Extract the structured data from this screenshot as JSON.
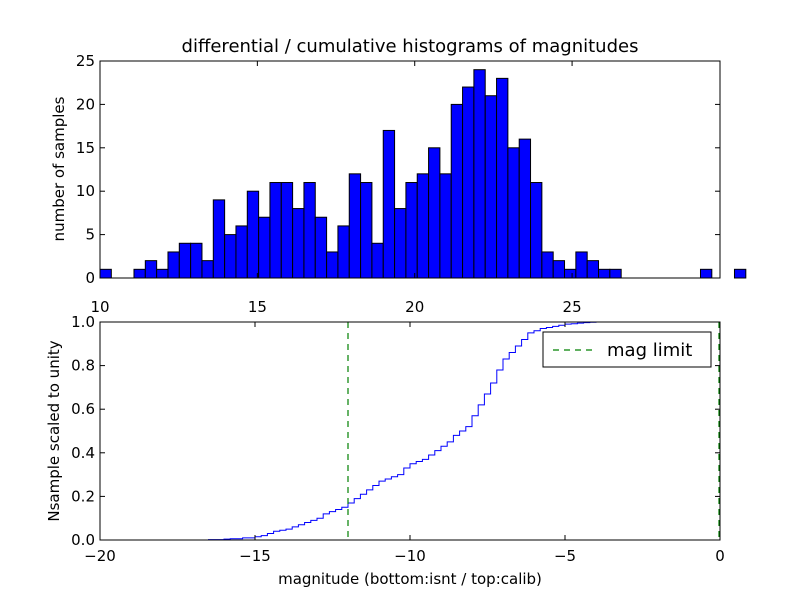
{
  "figure_title": "differential / cumulative histograms of magnitudes",
  "colors": {
    "bar_fill": "#0000ff",
    "cdf_line": "#0000ff",
    "limit_line": "#008000",
    "frame": "#000000"
  },
  "chart_data": [
    {
      "type": "bar",
      "title": "differential / cumulative histograms of magnitudes",
      "xlabel": "",
      "ylabel": "number of samples",
      "xlim": [
        10.0,
        29.7
      ],
      "ylim": [
        0,
        25
      ],
      "xticks": [
        10,
        15,
        20,
        25
      ],
      "xtick_labels": [
        "10",
        "15",
        "20",
        "25"
      ],
      "yticks": [
        0,
        5,
        10,
        15,
        20,
        25
      ],
      "ytick_labels": [
        "0",
        "5",
        "10",
        "15",
        "20",
        "25"
      ],
      "bin_edges_start": 10.0,
      "bin_width": 0.36,
      "values": [
        1,
        0,
        0,
        1,
        2,
        1,
        3,
        4,
        4,
        2,
        9,
        5,
        6,
        10,
        7,
        11,
        11,
        8,
        11,
        7,
        3,
        6,
        12,
        11,
        4,
        17,
        8,
        11,
        12,
        15,
        12,
        20,
        22,
        24,
        21,
        23,
        15,
        16,
        11,
        3,
        2,
        1,
        3,
        2,
        1,
        1,
        0,
        0,
        0,
        0,
        0,
        0,
        0,
        1,
        0,
        0,
        1
      ]
    },
    {
      "type": "line",
      "style": "step",
      "xlabel": "magnitude (bottom:isnt / top:calib)",
      "ylabel": "Nsample scaled to unity",
      "xlim": [
        -20,
        0
      ],
      "ylim": [
        0.0,
        1.0
      ],
      "xticks": [
        -20,
        -15,
        -10,
        -5,
        0
      ],
      "xtick_labels": [
        "−20",
        "−15",
        "−10",
        "−5",
        "0"
      ],
      "yticks": [
        0.0,
        0.2,
        0.4,
        0.6,
        0.8,
        1.0
      ],
      "ytick_labels": [
        "0.0",
        "0.2",
        "0.4",
        "0.6",
        "0.8",
        "1.0"
      ],
      "x": [
        -20.0,
        -17.0,
        -16.5,
        -16.0,
        -15.8,
        -15.4,
        -15.0,
        -14.8,
        -14.6,
        -14.4,
        -14.2,
        -14.0,
        -13.8,
        -13.6,
        -13.4,
        -13.2,
        -13.0,
        -12.8,
        -12.6,
        -12.4,
        -12.2,
        -12.0,
        -11.8,
        -11.6,
        -11.4,
        -11.2,
        -11.0,
        -10.8,
        -10.6,
        -10.4,
        -10.2,
        -10.0,
        -9.8,
        -9.6,
        -9.4,
        -9.2,
        -9.0,
        -8.8,
        -8.6,
        -8.4,
        -8.2,
        -8.0,
        -7.8,
        -7.6,
        -7.4,
        -7.2,
        -7.0,
        -6.8,
        -6.6,
        -6.4,
        -6.2,
        -6.0,
        -5.8,
        -5.6,
        -5.4,
        -5.2,
        -5.0,
        -4.8,
        -4.6,
        -4.4,
        -4.2,
        -4.0,
        -3.0
      ],
      "y": [
        0.0,
        0.0,
        0.002,
        0.004,
        0.006,
        0.01,
        0.015,
        0.02,
        0.03,
        0.04,
        0.045,
        0.05,
        0.06,
        0.07,
        0.08,
        0.09,
        0.1,
        0.12,
        0.13,
        0.14,
        0.15,
        0.17,
        0.19,
        0.21,
        0.23,
        0.25,
        0.27,
        0.28,
        0.29,
        0.3,
        0.33,
        0.35,
        0.36,
        0.37,
        0.39,
        0.41,
        0.43,
        0.45,
        0.48,
        0.5,
        0.52,
        0.57,
        0.62,
        0.67,
        0.72,
        0.78,
        0.83,
        0.86,
        0.89,
        0.92,
        0.95,
        0.96,
        0.97,
        0.975,
        0.98,
        0.985,
        0.99,
        0.992,
        0.995,
        0.997,
        0.999,
        1.0,
        1.0
      ],
      "vline": {
        "x": -12.0,
        "label": "mag limit",
        "linestyle": "dashed"
      },
      "legend": {
        "entries": [
          "mag limit"
        ],
        "placement": "top-right"
      }
    }
  ]
}
